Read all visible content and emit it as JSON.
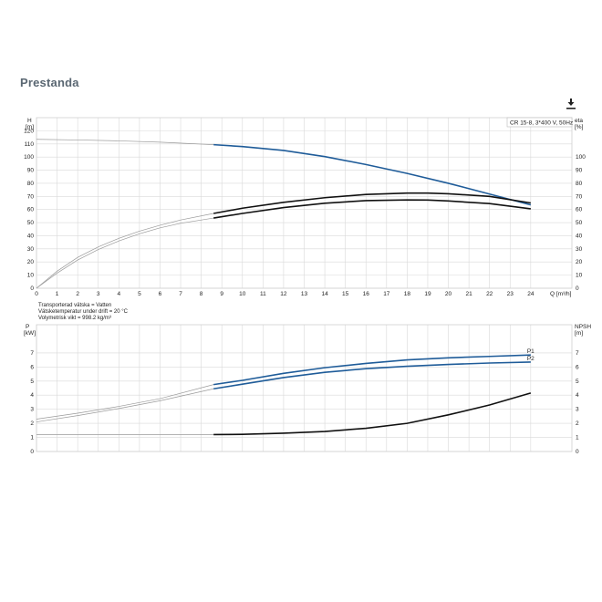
{
  "page": {
    "section_title": "Prestanda"
  },
  "toolbar": {
    "download_icon": "download-icon"
  },
  "colors": {
    "blue": "#1f5c99",
    "black": "#111111",
    "faint": "#9a9a9a"
  },
  "chart_data": [
    {
      "type": "line",
      "legend_box": "CR 15-8, 3*400 V, 50Hz",
      "ylabel_left": "H",
      "yunit_left": "[m]",
      "ylabel_right": "eta",
      "yunit_right": "[%]",
      "xlabel": "Q [m³/h]",
      "xlim": [
        0,
        26
      ],
      "xticks": [
        0,
        1,
        2,
        3,
        4,
        5,
        6,
        7,
        8,
        9,
        10,
        11,
        12,
        13,
        14,
        15,
        16,
        17,
        18,
        19,
        20,
        21,
        22,
        23,
        24
      ],
      "ylim_left": [
        0,
        130
      ],
      "yticks_left": [
        0,
        10,
        20,
        30,
        40,
        50,
        60,
        70,
        80,
        90,
        100,
        110,
        120
      ],
      "yticks_right": [
        0,
        10,
        20,
        30,
        40,
        50,
        60,
        70,
        80,
        90,
        100
      ],
      "notes": [
        "Transporterad vätska = Vatten",
        "Vätsketemperatur under drift = 20 °C",
        "Volymetrisk vikt = 998.2 kg/m³"
      ],
      "series": [
        {
          "color": "blue",
          "x": [
            0,
            2,
            4,
            6,
            8.6,
            10,
            12,
            14,
            16,
            18,
            20,
            22,
            24
          ],
          "y": [
            113.5,
            113,
            112.3,
            111.3,
            109.4,
            108,
            105,
            100.3,
            94.3,
            87.5,
            80,
            71.8,
            63.5
          ]
        },
        {
          "color": "black",
          "x": [
            0,
            1,
            2,
            3,
            4,
            5,
            6,
            7,
            8.6,
            10,
            12,
            14,
            16,
            18,
            19,
            20,
            22,
            24
          ],
          "y": [
            0,
            13,
            23.5,
            31.5,
            38,
            43.5,
            48,
            52,
            57,
            61,
            65.5,
            69,
            71.5,
            72.5,
            72.5,
            72,
            70,
            65
          ]
        },
        {
          "color": "black",
          "x": [
            0,
            1,
            2,
            3,
            4,
            5,
            6,
            7,
            8.6,
            10,
            12,
            14,
            16,
            18,
            19,
            20,
            22,
            24
          ],
          "y": [
            0,
            11.5,
            21.5,
            29.5,
            36,
            41.5,
            46,
            49.5,
            53.5,
            57,
            61.5,
            64.8,
            66.8,
            67.3,
            67.2,
            66.5,
            64.5,
            60.5
          ]
        }
      ],
      "start_of_duty_range_x": 8.6
    },
    {
      "type": "line",
      "ylabel_left": "P",
      "yunit_left": "[kW]",
      "ylabel_right": "NPSH",
      "yunit_right": "[m]",
      "xlim": [
        0,
        26
      ],
      "ylim_left": [
        0,
        9
      ],
      "yticks_left": [
        0,
        1,
        2,
        3,
        4,
        5,
        6,
        7
      ],
      "yticks_right": [
        0,
        1,
        2,
        3,
        4,
        5,
        6,
        7
      ],
      "series": [
        {
          "name": "P1",
          "color": "blue",
          "x": [
            0,
            2,
            4,
            6,
            8.6,
            10,
            12,
            14,
            16,
            18,
            20,
            22,
            24
          ],
          "y": [
            2.3,
            2.72,
            3.2,
            3.75,
            4.75,
            5.05,
            5.55,
            5.95,
            6.25,
            6.5,
            6.65,
            6.75,
            6.85
          ]
        },
        {
          "name": "P2",
          "color": "blue",
          "x": [
            0,
            2,
            4,
            6,
            8.6,
            10,
            12,
            14,
            16,
            18,
            20,
            22,
            24
          ],
          "y": [
            2.1,
            2.55,
            3.05,
            3.6,
            4.45,
            4.78,
            5.25,
            5.62,
            5.88,
            6.05,
            6.18,
            6.28,
            6.35
          ]
        },
        {
          "color": "black",
          "x": [
            0,
            4,
            8.6,
            10,
            12,
            14,
            16,
            18,
            20,
            22,
            24
          ],
          "y": [
            1.2,
            1.2,
            1.2,
            1.22,
            1.3,
            1.42,
            1.65,
            2.0,
            2.6,
            3.3,
            4.15
          ]
        }
      ]
    }
  ]
}
